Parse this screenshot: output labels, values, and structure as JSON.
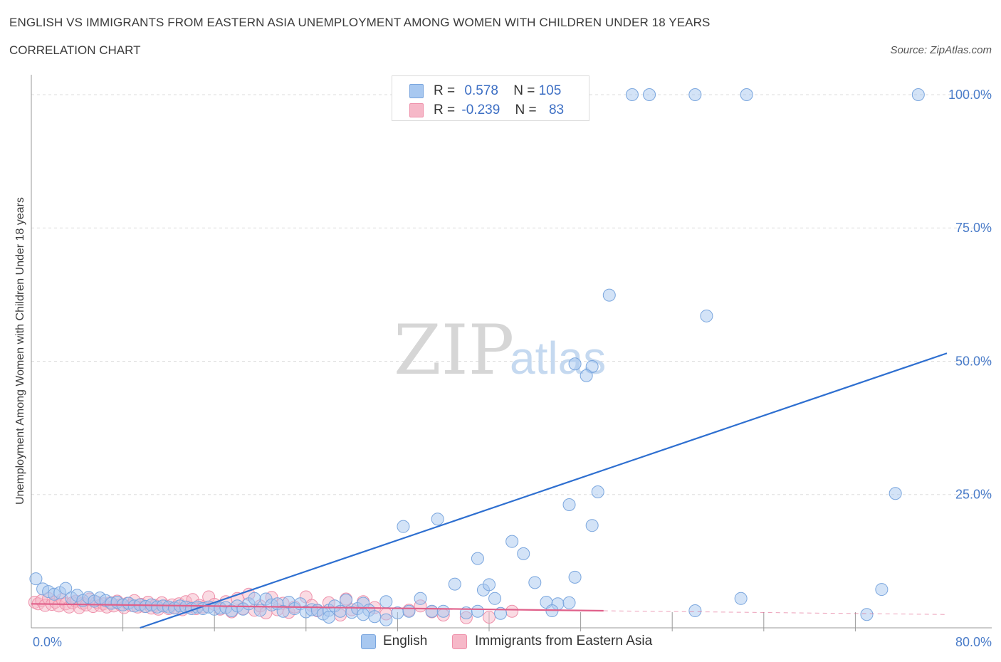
{
  "header": {
    "title": "ENGLISH VS IMMIGRANTS FROM EASTERN ASIA UNEMPLOYMENT AMONG WOMEN WITH CHILDREN UNDER 18 YEARS",
    "subtitle": "CORRELATION CHART",
    "source": "Source: ZipAtlas.com"
  },
  "watermark": {
    "zip": "ZIP",
    "atlas": "atlas"
  },
  "legend": {
    "english": {
      "r_label": "R =",
      "r_value": "0.578",
      "n_label": "N =",
      "n_value": "105"
    },
    "immigrants": {
      "r_label": "R =",
      "r_value": "-0.239",
      "n_label": "N =",
      "n_value": "83"
    }
  },
  "colors": {
    "english_fill": "#a8c8f0",
    "english_stroke": "#7aa6de",
    "english_line": "#2e6fd0",
    "immigrants_fill": "#f6b8c8",
    "immigrants_stroke": "#ee90aa",
    "immigrants_line": "#e0608a",
    "grid": "#dddddd",
    "tick_text": "#4a7cc9"
  },
  "chart_data": {
    "type": "scatter",
    "title": "ENGLISH VS IMMIGRANTS FROM EASTERN ASIA UNEMPLOYMENT AMONG WOMEN WITH CHILDREN UNDER 18 YEARS",
    "xlabel": "",
    "ylabel": "Unemployment Among Women with Children Under 18 years",
    "xlim": [
      0,
      80
    ],
    "ylim": [
      0,
      102
    ],
    "x_tick_labels": [
      "0.0%",
      "80.0%"
    ],
    "y_ticks": [
      25,
      50,
      75,
      100
    ],
    "y_tick_labels": [
      "25.0%",
      "50.0%",
      "75.0%",
      "100.0%"
    ],
    "grid": true,
    "legend_position": "top-center",
    "series": [
      {
        "name": "English",
        "R": 0.578,
        "N": 105,
        "trend": {
          "x": [
            9.5,
            80
          ],
          "y": [
            0,
            51.5
          ]
        },
        "points": [
          [
            0.4,
            9.2
          ],
          [
            1,
            7.3
          ],
          [
            1.5,
            6.8
          ],
          [
            2,
            6.3
          ],
          [
            2.5,
            6.6
          ],
          [
            3,
            7.4
          ],
          [
            3.5,
            5.6
          ],
          [
            4,
            6.1
          ],
          [
            4.5,
            5.1
          ],
          [
            5,
            5.7
          ],
          [
            5.5,
            5.0
          ],
          [
            6,
            5.6
          ],
          [
            6.5,
            5.1
          ],
          [
            7,
            4.6
          ],
          [
            7.5,
            4.8
          ],
          [
            8,
            4.3
          ],
          [
            8.5,
            4.6
          ],
          [
            9,
            4.1
          ],
          [
            9.5,
            4.3
          ],
          [
            10,
            4.0
          ],
          [
            10.5,
            4.3
          ],
          [
            11,
            3.9
          ],
          [
            11.5,
            4.1
          ],
          [
            12,
            3.9
          ],
          [
            12.5,
            3.7
          ],
          [
            13,
            4.1
          ],
          [
            13.5,
            3.9
          ],
          [
            14,
            3.6
          ],
          [
            14.5,
            3.9
          ],
          [
            15,
            3.6
          ],
          [
            15.5,
            3.9
          ],
          [
            16,
            3.5
          ],
          [
            16.5,
            3.7
          ],
          [
            17,
            3.8
          ],
          [
            17.5,
            3.2
          ],
          [
            18,
            4.1
          ],
          [
            18.5,
            3.5
          ],
          [
            19,
            4.5
          ],
          [
            19.5,
            5.5
          ],
          [
            20,
            3.3
          ],
          [
            20.5,
            5.4
          ],
          [
            21,
            4.3
          ],
          [
            21.5,
            4.5
          ],
          [
            22,
            3.1
          ],
          [
            22.5,
            4.8
          ],
          [
            23,
            3.6
          ],
          [
            23.5,
            4.5
          ],
          [
            24,
            3.0
          ],
          [
            24.5,
            3.4
          ],
          [
            25,
            3.3
          ],
          [
            25.5,
            2.6
          ],
          [
            26,
            3.3
          ],
          [
            26.5,
            4.1
          ],
          [
            27,
            3.1
          ],
          [
            27.5,
            5.2
          ],
          [
            28,
            2.9
          ],
          [
            28.5,
            3.6
          ],
          [
            29,
            4.6
          ],
          [
            29.5,
            3.3
          ],
          [
            30,
            2.1
          ],
          [
            31,
            4.9
          ],
          [
            32,
            2.8
          ],
          [
            33,
            3.1
          ],
          [
            34,
            5.5
          ],
          [
            35,
            3.1
          ],
          [
            36,
            3.1
          ],
          [
            37,
            8.2
          ],
          [
            38,
            2.8
          ],
          [
            39,
            3.1
          ],
          [
            39.5,
            7.1
          ],
          [
            40,
            8.1
          ],
          [
            40.5,
            5.5
          ],
          [
            41,
            2.7
          ],
          [
            42,
            16.2
          ],
          [
            43,
            13.9
          ],
          [
            44,
            8.5
          ],
          [
            45,
            4.8
          ],
          [
            46,
            4.5
          ],
          [
            47,
            4.7
          ],
          [
            47.5,
            9.5
          ],
          [
            32.5,
            19.0
          ],
          [
            35.5,
            20.4
          ],
          [
            39,
            13.0
          ],
          [
            47,
            23.1
          ],
          [
            49,
            19.2
          ],
          [
            49.5,
            25.5
          ],
          [
            47.5,
            49.5
          ],
          [
            49,
            49.0
          ],
          [
            48.5,
            47.3
          ],
          [
            50.5,
            62.4
          ],
          [
            59,
            58.5
          ],
          [
            75.5,
            25.2
          ],
          [
            74.3,
            7.2
          ],
          [
            62,
            5.5
          ],
          [
            73,
            2.5
          ],
          [
            58,
            3.2
          ],
          [
            45.5,
            3.2
          ],
          [
            26,
            2.0
          ],
          [
            54,
            100
          ],
          [
            52.5,
            100
          ],
          [
            58,
            100
          ],
          [
            62.5,
            100
          ],
          [
            77.5,
            100
          ],
          [
            29,
            2.5
          ],
          [
            31,
            1.5
          ]
        ]
      },
      {
        "name": "Immigrants from Eastern Asia",
        "R": -0.239,
        "N": 83,
        "trend": {
          "x": [
            0,
            50
          ],
          "y": [
            4.5,
            3.2
          ]
        },
        "trend_dashed": {
          "x": [
            50,
            80
          ],
          "y": [
            3.2,
            2.5
          ]
        },
        "points": [
          [
            0.3,
            4.8
          ],
          [
            0.6,
            4.5
          ],
          [
            0.9,
            5.1
          ],
          [
            1.2,
            4.2
          ],
          [
            1.5,
            5.5
          ],
          [
            1.8,
            4.4
          ],
          [
            2.1,
            4.8
          ],
          [
            2.4,
            4.1
          ],
          [
            2.7,
            5.3
          ],
          [
            3,
            4.5
          ],
          [
            3.3,
            3.9
          ],
          [
            3.6,
            4.7
          ],
          [
            3.9,
            5.0
          ],
          [
            4.2,
            3.8
          ],
          [
            4.5,
            4.6
          ],
          [
            4.8,
            4.3
          ],
          [
            5.1,
            5.4
          ],
          [
            5.4,
            4.0
          ],
          [
            5.7,
            4.8
          ],
          [
            6,
            4.2
          ],
          [
            6.3,
            4.5
          ],
          [
            6.6,
            3.9
          ],
          [
            6.9,
            4.7
          ],
          [
            7.2,
            4.1
          ],
          [
            7.5,
            5.0
          ],
          [
            7.8,
            4.3
          ],
          [
            8.1,
            3.8
          ],
          [
            8.4,
            4.6
          ],
          [
            8.7,
            4.2
          ],
          [
            9,
            5.1
          ],
          [
            9.3,
            3.9
          ],
          [
            9.6,
            4.4
          ],
          [
            9.9,
            4.0
          ],
          [
            10.2,
            4.8
          ],
          [
            10.5,
            3.7
          ],
          [
            10.8,
            4.2
          ],
          [
            11.1,
            3.5
          ],
          [
            11.4,
            4.7
          ],
          [
            11.7,
            4.1
          ],
          [
            12,
            3.6
          ],
          [
            12.3,
            4.3
          ],
          [
            12.6,
            3.8
          ],
          [
            12.9,
            4.5
          ],
          [
            13.2,
            3.4
          ],
          [
            13.5,
            4.9
          ],
          [
            13.8,
            3.9
          ],
          [
            14.1,
            5.3
          ],
          [
            14.4,
            3.6
          ],
          [
            14.7,
            4.2
          ],
          [
            15,
            3.9
          ],
          [
            15.5,
            5.8
          ],
          [
            16,
            4.4
          ],
          [
            16.5,
            3.5
          ],
          [
            17,
            4.9
          ],
          [
            17.5,
            3.0
          ],
          [
            18,
            5.5
          ],
          [
            18.5,
            3.6
          ],
          [
            19,
            6.3
          ],
          [
            19.5,
            3.3
          ],
          [
            20,
            4.1
          ],
          [
            20.5,
            2.8
          ],
          [
            21,
            5.7
          ],
          [
            21.5,
            3.4
          ],
          [
            22,
            4.6
          ],
          [
            22.5,
            2.9
          ],
          [
            23,
            3.9
          ],
          [
            24,
            5.8
          ],
          [
            24.5,
            4.2
          ],
          [
            25,
            3.2
          ],
          [
            26,
            4.7
          ],
          [
            27,
            2.4
          ],
          [
            27.5,
            5.4
          ],
          [
            28,
            3.4
          ],
          [
            29,
            4.9
          ],
          [
            30,
            3.8
          ],
          [
            31,
            2.6
          ],
          [
            33,
            3.3
          ],
          [
            34,
            4.1
          ],
          [
            35,
            3.0
          ],
          [
            36,
            2.4
          ],
          [
            38,
            1.9
          ],
          [
            40,
            2.0
          ],
          [
            42,
            3.1
          ]
        ]
      }
    ]
  }
}
